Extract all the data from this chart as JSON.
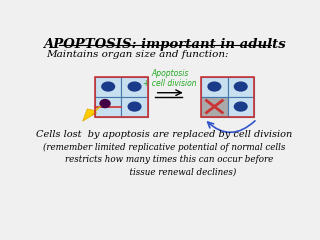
{
  "title": "APOPTOSIS: important in adults",
  "subtitle": "Maintains organ size and function:",
  "text1": "Cells lost  by apoptosis are replaced by cell division",
  "text2": "(remember limited replicative potential of normal cells\n    restricts how many times this can occur before\n              tissue renewal declines)",
  "bg_color": "#f0f0f0",
  "cell_fill": "#c8dff0",
  "cell_edge": "#4477aa",
  "nucleus_fill": "#1a3a8a",
  "dividing_fill": "#cc3333",
  "dead_fill": "#aaaaaa",
  "arrow_label": "Apoptosis\n+ cell division",
  "arrow_label_color": "#22aa22"
}
